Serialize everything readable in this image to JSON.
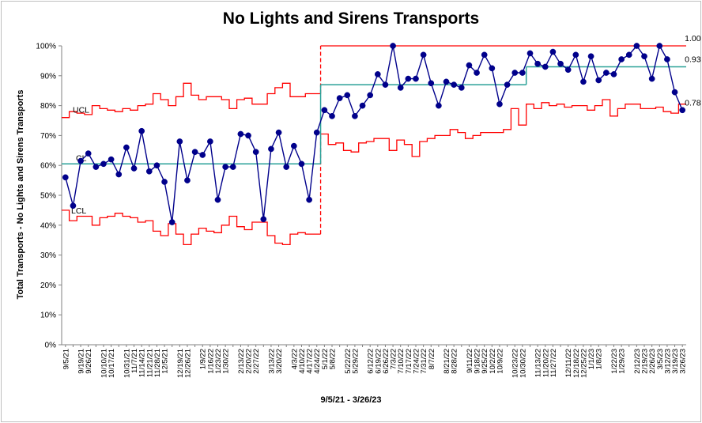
{
  "chart_data": {
    "type": "line",
    "title": "No Lights and Sirens Transports",
    "xlabel": "9/5/21 - 3/26/23",
    "ylabel": "Total Transports - No Lights and Sirens Transports",
    "ylim": [
      0,
      100
    ],
    "yticks": [
      "0%",
      "10%",
      "20%",
      "30%",
      "40%",
      "50%",
      "60%",
      "70%",
      "80%",
      "90%",
      "100%"
    ],
    "x": [
      "9/5/21",
      "9/12/21",
      "9/19/21",
      "9/26/21",
      "10/3/21",
      "10/10/21",
      "10/17/21",
      "10/24/21",
      "10/31/21",
      "11/7/21",
      "11/14/21",
      "11/21/21",
      "11/28/21",
      "12/5/21",
      "12/12/21",
      "12/19/21",
      "12/26/21",
      "1/2/22",
      "1/9/22",
      "1/16/22",
      "1/23/22",
      "1/30/22",
      "2/6/22",
      "2/13/22",
      "2/20/22",
      "2/27/22",
      "3/6/22",
      "3/13/22",
      "3/20/22",
      "3/27/22",
      "4/3/22",
      "4/10/22",
      "4/17/22",
      "4/24/22",
      "5/1/22",
      "5/8/22",
      "5/15/22",
      "5/22/22",
      "5/29/22",
      "6/5/22",
      "6/12/22",
      "6/19/22",
      "6/26/22",
      "7/3/22",
      "7/10/22",
      "7/17/22",
      "7/24/22",
      "7/31/22",
      "8/7/22",
      "8/14/22",
      "8/21/22",
      "8/28/22",
      "9/4/22",
      "9/11/22",
      "9/18/22",
      "9/25/22",
      "10/2/22",
      "10/9/22",
      "10/16/22",
      "10/23/22",
      "10/30/22",
      "11/6/22",
      "11/13/22",
      "11/20/22",
      "11/27/22",
      "12/4/22",
      "12/11/22",
      "12/18/22",
      "12/25/22",
      "1/1/23",
      "1/8/23",
      "1/15/23",
      "1/22/23",
      "1/29/23",
      "2/5/23",
      "2/12/23",
      "2/19/23",
      "2/26/23",
      "3/5/23",
      "3/12/23",
      "3/19/23",
      "3/26/23"
    ],
    "xtick_labels": [
      "9/5/21",
      "9/19/21",
      "9/26/21",
      "10/10/21",
      "10/17/21",
      "10/31/21",
      "11/7/21",
      "11/14/21",
      "11/21/21",
      "11/28/21",
      "12/5/21",
      "12/19/21",
      "12/26/21",
      "1/9/22",
      "1/16/22",
      "1/23/22",
      "1/30/22",
      "2/13/22",
      "2/20/22",
      "2/27/22",
      "3/13/22",
      "3/20/22",
      "4/3/22",
      "4/10/22",
      "4/17/22",
      "4/24/22",
      "5/1/22",
      "5/8/22",
      "5/22/22",
      "5/29/22",
      "6/12/22",
      "6/19/22",
      "6/26/22",
      "7/3/22",
      "7/10/22",
      "7/17/22",
      "7/24/22",
      "7/31/22",
      "8/7/22",
      "8/21/22",
      "8/28/22",
      "9/11/22",
      "9/18/22",
      "9/25/22",
      "10/2/22",
      "10/9/22",
      "10/23/22",
      "10/30/22",
      "11/13/22",
      "11/20/22",
      "11/27/22",
      "12/11/22",
      "12/18/22",
      "12/25/22",
      "1/1/23",
      "1/8/23",
      "1/22/23",
      "1/29/23",
      "2/12/23",
      "2/19/23",
      "2/26/23",
      "3/5/23",
      "3/12/23",
      "3/19/23",
      "3/26/23"
    ],
    "series": [
      {
        "name": "",
        "color": "#00008B",
        "values": [
          56,
          46.5,
          61.5,
          64,
          59.5,
          60.5,
          62,
          57,
          66,
          59,
          71.5,
          58,
          60,
          54.5,
          41,
          68,
          55,
          64.5,
          63.5,
          68,
          48.5,
          59.5,
          59.5,
          70.5,
          70,
          64.5,
          42,
          65.5,
          71,
          59.5,
          66.5,
          60.5,
          48.5,
          71,
          78.5,
          76.5,
          82.5,
          83.5,
          76.5,
          80,
          83.5,
          90.5,
          87,
          100,
          86,
          89,
          89,
          97,
          87.5,
          80,
          88,
          87,
          86,
          93.5,
          91,
          97,
          92.5,
          80.5,
          87,
          91,
          91,
          97.5,
          94,
          93,
          98,
          94,
          92,
          97,
          88,
          96.5,
          88.5,
          91,
          90.5,
          95.5,
          97,
          100,
          96.5,
          89,
          100,
          95.5,
          84.5,
          78.5
        ]
      }
    ],
    "control_limits": {
      "ucl_label": "UCL",
      "cl_label": "CL",
      "lcl_label": "LCL",
      "ucl_color": "#ff0000",
      "lcl_color": "#ff0000",
      "cl_color": "#2aa198",
      "cl": [
        60.5,
        87,
        93
      ],
      "cl_breaks": [
        0,
        34,
        61,
        82
      ],
      "ucl": [
        76,
        78,
        77.5,
        77,
        80,
        79,
        78.5,
        78,
        79,
        78.5,
        80,
        80.5,
        84,
        82,
        80,
        83,
        87.5,
        83.5,
        82,
        83,
        83,
        82,
        79,
        82,
        82.5,
        80.5,
        80.5,
        84,
        86,
        87.5,
        83,
        83,
        84,
        84,
        100,
        100,
        100,
        100,
        100,
        100,
        100,
        100,
        100,
        100,
        100,
        100,
        100,
        100,
        100,
        100,
        100,
        100,
        100,
        100,
        100,
        100,
        100,
        100,
        100,
        100,
        100,
        100,
        100,
        100,
        100,
        100,
        100,
        100,
        100,
        100,
        100,
        100,
        100,
        100,
        100,
        100,
        100,
        100,
        100,
        100,
        100,
        100
      ],
      "lcl": [
        45,
        41.5,
        43,
        43,
        40,
        42.5,
        43,
        44,
        43,
        42.5,
        41,
        41.5,
        38,
        36.5,
        40.5,
        37,
        33.5,
        37,
        39,
        38,
        37.5,
        40,
        43,
        39.5,
        38.5,
        41,
        41,
        36.5,
        34,
        33.5,
        37,
        37.5,
        37,
        37,
        70.5,
        67,
        67.5,
        65,
        64.5,
        67.5,
        68,
        69,
        69,
        65,
        68.5,
        67,
        63,
        68,
        69,
        70,
        70,
        72,
        71,
        69,
        70,
        71,
        71,
        71,
        72,
        79,
        73.5,
        80.5,
        79,
        81,
        80,
        80.5,
        79.5,
        80,
        80,
        78.5,
        80,
        82,
        76.5,
        79,
        80.5,
        80.5,
        79,
        79,
        79.5,
        78,
        77.5,
        80.5
      ]
    },
    "annotations": [
      {
        "text": "1.00",
        "x_index": 81,
        "y": 100
      },
      {
        "text": "0.93",
        "x_index": 81,
        "y": 93
      },
      {
        "text": "0.78",
        "x_index": 81,
        "y": 78.5
      }
    ],
    "grid": false,
    "legend": "none"
  }
}
